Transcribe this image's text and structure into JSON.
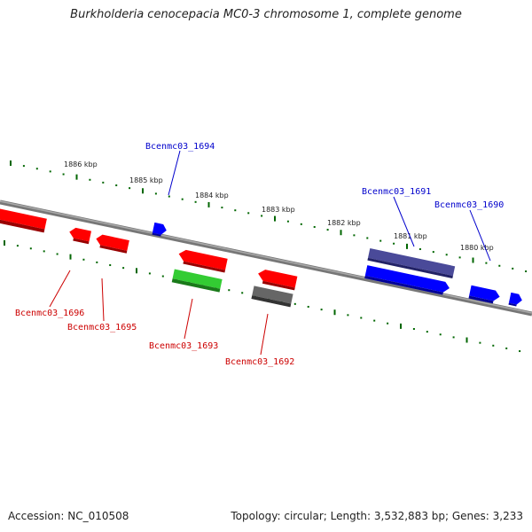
{
  "title": "Burkholderia cenocepacia MC0-3 chromosome 1, complete genome",
  "footer": {
    "accession": "Accession: NC_010508",
    "summary": "Topology: circular; Length: 3,532,883 bp; Genes: 3,233"
  },
  "kbp_labels": [
    "1886 kbp",
    "1885 kbp",
    "1884 kbp",
    "1883 kbp",
    "1882 kbp",
    "1881 kbp",
    "1880 kbp"
  ],
  "genes_top": [
    {
      "name": "Bcenmc03_1694",
      "color": "#0000cc"
    },
    {
      "name": "Bcenmc03_1691",
      "color": "#0000cc"
    },
    {
      "name": "Bcenmc03_1690",
      "color": "#0000cc"
    }
  ],
  "genes_bottom": [
    {
      "name": "Bcenmc03_1696",
      "color": "#cc0000"
    },
    {
      "name": "Bcenmc03_1695",
      "color": "#cc0000"
    },
    {
      "name": "Bcenmc03_1693",
      "color": "#cc0000"
    },
    {
      "name": "Bcenmc03_1692",
      "color": "#cc0000"
    }
  ],
  "colors": {
    "forward_gene": "#0000ff",
    "reverse_gene": "#ff0000",
    "rna_gene": "#33cc33",
    "pseudo_gene": "#666666",
    "highlight_gene": "#4a4a99",
    "backbone": "#888888",
    "ticks": "#006600"
  }
}
